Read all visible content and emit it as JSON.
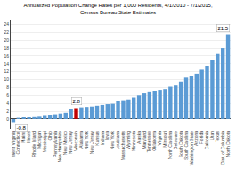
{
  "chart_data": {
    "type": "bar",
    "title": "Annualized Population Change Rates per 1,000 Residents, 4/1/2010 - 7/1/2015,\nCensus Bureau State Estimates",
    "categories": [
      "West Virginia",
      "Connecticut",
      "Maine",
      "Illinois",
      "Rhode Island",
      "Michigan",
      "Mississippi",
      "Ohio",
      "Pennsylvania",
      "New Hampshire",
      "New Mexico",
      "New Jersey",
      "Wisconsin",
      "Alabama",
      "New York",
      "New Jersey",
      "Kansas",
      "Indiana",
      "Iowa",
      "New York",
      "Louisiana",
      "Massachusetts",
      "Wyoming",
      "Minnesota",
      "Alaska",
      "Maryland",
      "Tennessee",
      "Oklahoma",
      "Virginia",
      "Missouri",
      "North Carolina",
      "Delaware",
      "South Dakota",
      "South Carolina",
      "Washington State",
      "Arizona",
      "Florida",
      "California",
      "Utah",
      "Texas",
      "Dist. of Columbia",
      "North Dakota"
    ],
    "values": [
      -0.8,
      0.3,
      0.5,
      0.6,
      0.7,
      0.8,
      1.0,
      1.1,
      1.2,
      1.4,
      1.6,
      2.5,
      2.8,
      3.0,
      3.1,
      3.2,
      3.4,
      3.6,
      3.8,
      3.9,
      4.5,
      4.8,
      5.0,
      5.5,
      6.0,
      6.5,
      7.0,
      7.2,
      7.4,
      7.6,
      8.2,
      8.5,
      9.5,
      10.5,
      11.0,
      11.5,
      12.5,
      13.5,
      15.0,
      16.5,
      18.0,
      21.5
    ],
    "colors": [
      "#5b9bd5",
      "#5b9bd5",
      "#5b9bd5",
      "#5b9bd5",
      "#5b9bd5",
      "#5b9bd5",
      "#5b9bd5",
      "#5b9bd5",
      "#5b9bd5",
      "#5b9bd5",
      "#5b9bd5",
      "#5b9bd5",
      "#c00000",
      "#5b9bd5",
      "#5b9bd5",
      "#5b9bd5",
      "#5b9bd5",
      "#5b9bd5",
      "#5b9bd5",
      "#5b9bd5",
      "#5b9bd5",
      "#5b9bd5",
      "#5b9bd5",
      "#5b9bd5",
      "#5b9bd5",
      "#5b9bd5",
      "#5b9bd5",
      "#5b9bd5",
      "#5b9bd5",
      "#5b9bd5",
      "#5b9bd5",
      "#5b9bd5",
      "#5b9bd5",
      "#5b9bd5",
      "#5b9bd5",
      "#5b9bd5",
      "#5b9bd5",
      "#5b9bd5",
      "#5b9bd5",
      "#5b9bd5",
      "#5b9bd5",
      "#5b9bd5"
    ],
    "ylim": [
      -2.5,
      25
    ],
    "yticks": [
      0,
      2,
      4,
      6,
      8,
      10,
      12,
      14,
      16,
      18,
      20,
      22,
      24
    ],
    "grid": true,
    "annotations": [
      {
        "text": "2.8",
        "x": "Wisconsin",
        "y": 2.8
      },
      {
        "text": "21.5",
        "x": "North Dakota",
        "y": 21.5
      },
      {
        "text": "-0.8",
        "x": "West Virginia",
        "y": -0.8
      }
    ]
  }
}
